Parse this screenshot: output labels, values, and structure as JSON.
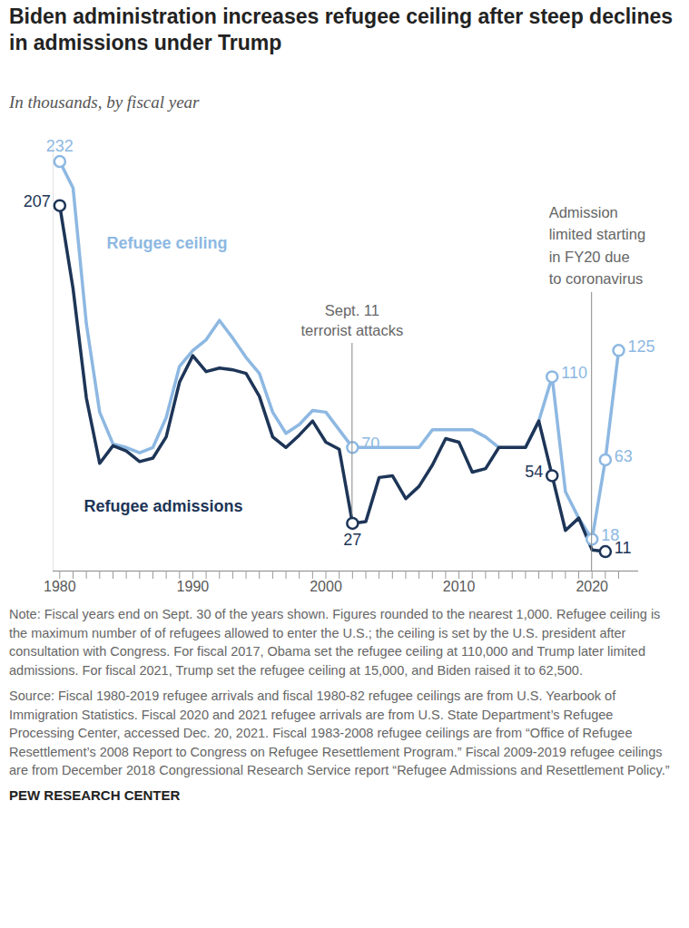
{
  "chart_data": {
    "type": "line",
    "title": "Biden administration increases refugee ceiling after steep declines in admissions under Trump",
    "subtitle": "In thousands, by fiscal year",
    "x": [
      1980,
      1981,
      1982,
      1983,
      1984,
      1985,
      1986,
      1987,
      1988,
      1989,
      1990,
      1991,
      1992,
      1993,
      1994,
      1995,
      1996,
      1997,
      1998,
      1999,
      2000,
      2001,
      2002,
      2003,
      2004,
      2005,
      2006,
      2007,
      2008,
      2009,
      2010,
      2011,
      2012,
      2013,
      2014,
      2015,
      2016,
      2017,
      2018,
      2019,
      2020,
      2021,
      2022
    ],
    "series": [
      {
        "name": "Refugee ceiling",
        "color": "#8db8e2",
        "marker": "circle",
        "values": [
          232,
          217,
          140,
          90,
          72,
          70,
          67,
          70,
          87,
          116,
          125,
          131,
          142,
          132,
          121,
          112,
          90,
          78,
          83,
          91,
          90,
          80,
          70,
          70,
          70,
          70,
          70,
          70,
          80,
          80,
          80,
          80,
          76,
          70,
          70,
          70,
          85,
          110,
          45,
          30,
          18,
          63,
          125
        ],
        "value_labels": [
          "232",
          null,
          null,
          null,
          null,
          null,
          null,
          null,
          null,
          null,
          null,
          null,
          null,
          null,
          null,
          null,
          null,
          null,
          null,
          null,
          null,
          null,
          "70",
          null,
          null,
          null,
          null,
          null,
          null,
          null,
          null,
          null,
          null,
          null,
          null,
          null,
          null,
          "110",
          null,
          null,
          "18",
          "63",
          "125"
        ]
      },
      {
        "name": "Refugee admissions",
        "color": "#1d3557",
        "marker": "circle",
        "values": [
          207,
          160,
          98,
          61,
          71,
          68,
          62,
          64,
          76,
          107,
          122,
          113,
          115,
          114,
          112,
          99,
          76,
          70,
          77,
          85,
          73,
          69,
          27,
          28,
          53,
          54,
          41,
          48,
          60,
          75,
          73,
          56,
          58,
          70,
          70,
          70,
          85,
          54,
          23,
          30,
          12,
          11,
          null
        ],
        "value_labels": [
          "207",
          null,
          null,
          null,
          null,
          null,
          null,
          null,
          null,
          null,
          null,
          null,
          null,
          null,
          null,
          null,
          null,
          null,
          null,
          null,
          null,
          null,
          "27",
          null,
          null,
          null,
          null,
          null,
          null,
          null,
          null,
          null,
          null,
          null,
          null,
          null,
          null,
          "54",
          null,
          null,
          null,
          "11",
          null
        ]
      }
    ],
    "xlim": [
      1979.5,
      2023.5
    ],
    "xticks": [
      1980,
      1990,
      2000,
      2010,
      2020
    ],
    "ylim": [
      0,
      240
    ],
    "tick_labels": "x",
    "grid": false,
    "data_labels": true,
    "annotations": [
      {
        "text": "Sept. 11\nterrorist attacks",
        "x": 2002
      },
      {
        "text": "Admission\nlimited starting\nin FY20 due\nto coronavirus",
        "x": 2020
      }
    ],
    "note": "Note: Fiscal years end on Sept. 30 of the years shown. Figures rounded to the nearest 1,000. Refugee ceiling is the maximum number of of refugees allowed to enter the U.S.; the ceiling is set by the U.S. president after consultation with Congress. For fiscal 2017, Obama set the refugee ceiling at 110,000 and Trump later limited admissions. For fiscal 2021, Trump set the refugee ceiling at 15,000, and Biden raised it to 62,500.",
    "source": "Source: Fiscal 1980-2019 refugee arrivals and fiscal 1980-82 refugee ceilings are from U.S. Yearbook of Immigration Statistics. Fiscal 2020 and 2021 refugee arrivals are from U.S. State Department’s Refugee Processing Center, accessed Dec. 20, 2021. Fiscal 1983-2008 refugee ceilings are from “Office of Refugee Resettlement’s 2008 Report to Congress on Refugee Resettlement Program.” Fiscal 2009-2019 refugee ceilings are from December 2018 Congressional Research Service report “Refugee Admissions and Resettlement Policy.”",
    "credit": "PEW RESEARCH CENTER"
  }
}
